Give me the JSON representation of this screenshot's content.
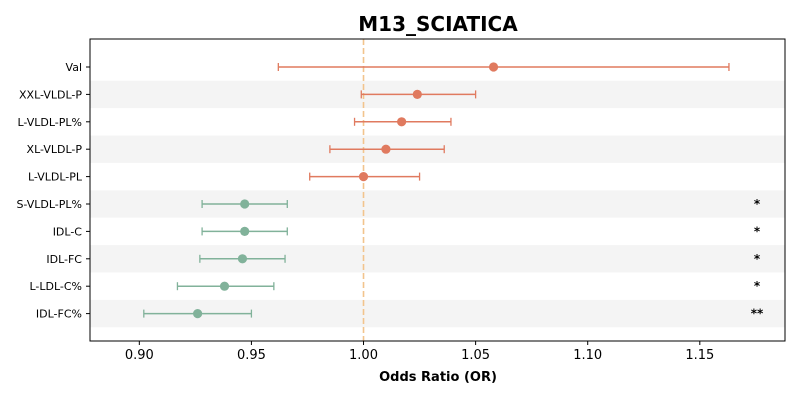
{
  "chart_data": {
    "type": "forest",
    "title": "M13_SCIATICA",
    "xlabel": "Odds Ratio (OR)",
    "ylabel": "",
    "xlim": [
      0.878,
      1.188
    ],
    "xticks": [
      0.9,
      0.95,
      1.0,
      1.05,
      1.1,
      1.15
    ],
    "xtick_labels": [
      "0.90",
      "0.95",
      "1.00",
      "1.05",
      "1.10",
      "1.15"
    ],
    "reference_line": 1.0,
    "grid": false,
    "colors": {
      "positive": "#E07A5F",
      "negative": "#81B29A",
      "reference": "#F2C48D",
      "band": "#F4F4F4"
    },
    "rows": [
      {
        "label": "Val",
        "or": 1.058,
        "lo": 0.962,
        "hi": 1.163,
        "sig": "",
        "direction": "positive"
      },
      {
        "label": "XXL-VLDL-P",
        "or": 1.024,
        "lo": 0.999,
        "hi": 1.05,
        "sig": "",
        "direction": "positive"
      },
      {
        "label": "L-VLDL-PL%",
        "or": 1.017,
        "lo": 0.996,
        "hi": 1.039,
        "sig": "",
        "direction": "positive"
      },
      {
        "label": "XL-VLDL-P",
        "or": 1.01,
        "lo": 0.985,
        "hi": 1.036,
        "sig": "",
        "direction": "positive"
      },
      {
        "label": "L-VLDL-PL",
        "or": 1.0,
        "lo": 0.976,
        "hi": 1.025,
        "sig": "",
        "direction": "positive"
      },
      {
        "label": "S-VLDL-PL%",
        "or": 0.947,
        "lo": 0.928,
        "hi": 0.966,
        "sig": "*",
        "direction": "negative"
      },
      {
        "label": "IDL-C",
        "or": 0.947,
        "lo": 0.928,
        "hi": 0.966,
        "sig": "*",
        "direction": "negative"
      },
      {
        "label": "IDL-FC",
        "or": 0.946,
        "lo": 0.927,
        "hi": 0.965,
        "sig": "*",
        "direction": "negative"
      },
      {
        "label": "L-LDL-C%",
        "or": 0.938,
        "lo": 0.917,
        "hi": 0.96,
        "sig": "*",
        "direction": "negative"
      },
      {
        "label": "IDL-FC%",
        "or": 0.926,
        "lo": 0.902,
        "hi": 0.95,
        "sig": "**",
        "direction": "negative"
      }
    ]
  }
}
